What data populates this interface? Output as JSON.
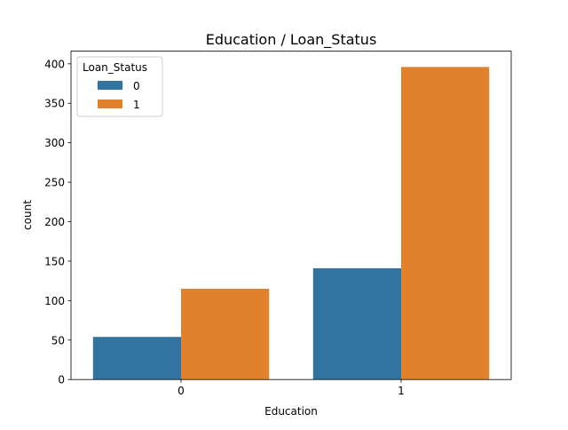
{
  "chart_data": {
    "type": "bar",
    "title": "Education / Loan_Status",
    "xlabel": "Education",
    "ylabel": "count",
    "categories": [
      "0",
      "1"
    ],
    "series": [
      {
        "name": "0",
        "values": [
          54,
          141
        ],
        "color": "#3274a1"
      },
      {
        "name": "1",
        "values": [
          115,
          396
        ],
        "color": "#e1812c"
      }
    ],
    "ylim": [
      0,
      416
    ],
    "yticks": [
      0,
      50,
      100,
      150,
      200,
      250,
      300,
      350,
      400
    ],
    "legend": {
      "title": "Loan_Status",
      "placement": "top-left"
    },
    "grid": false
  }
}
